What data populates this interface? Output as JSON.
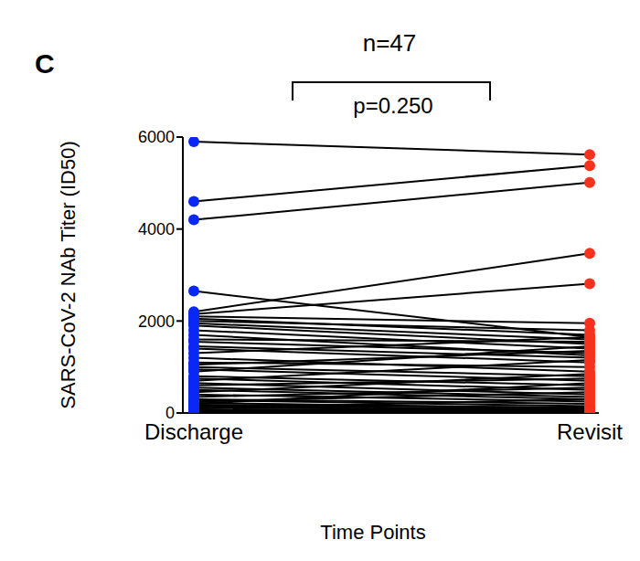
{
  "chart_data": {
    "type": "paired_dot",
    "panel_label": "C",
    "title": "n=47",
    "annotation": "p=0.250",
    "xlabel": "Time Points",
    "ylabel": "SARS-CoV-2 NAb Titer (ID50)",
    "ylim": [
      0,
      6000
    ],
    "yticks": [
      0,
      2000,
      4000,
      6000
    ],
    "grid": false,
    "series": [
      {
        "name": "Discharge",
        "color": "#0a28f5",
        "values": [
          5900,
          4600,
          4200,
          2650,
          2200,
          2150,
          2100,
          2050,
          2000,
          1950,
          1900,
          1800,
          1700,
          1600,
          1550,
          1450,
          1400,
          1300,
          1200,
          1100,
          1050,
          1000,
          950,
          900,
          800,
          750,
          700,
          650,
          600,
          550,
          500,
          450,
          400,
          350,
          300,
          280,
          250,
          220,
          200,
          180,
          150,
          120,
          100,
          80,
          60,
          40,
          20
        ]
      },
      {
        "name": "Revisit",
        "color": "#f5321e",
        "values": [
          5620,
          5380,
          5010,
          1650,
          3470,
          2810,
          1950,
          1700,
          1800,
          1600,
          1500,
          1400,
          1250,
          1550,
          1300,
          1200,
          1100,
          1650,
          900,
          1000,
          1350,
          800,
          700,
          1450,
          600,
          500,
          1150,
          400,
          750,
          350,
          300,
          850,
          250,
          550,
          200,
          150,
          450,
          100,
          650,
          120,
          80,
          60,
          300,
          50,
          40,
          30,
          20
        ]
      }
    ]
  }
}
